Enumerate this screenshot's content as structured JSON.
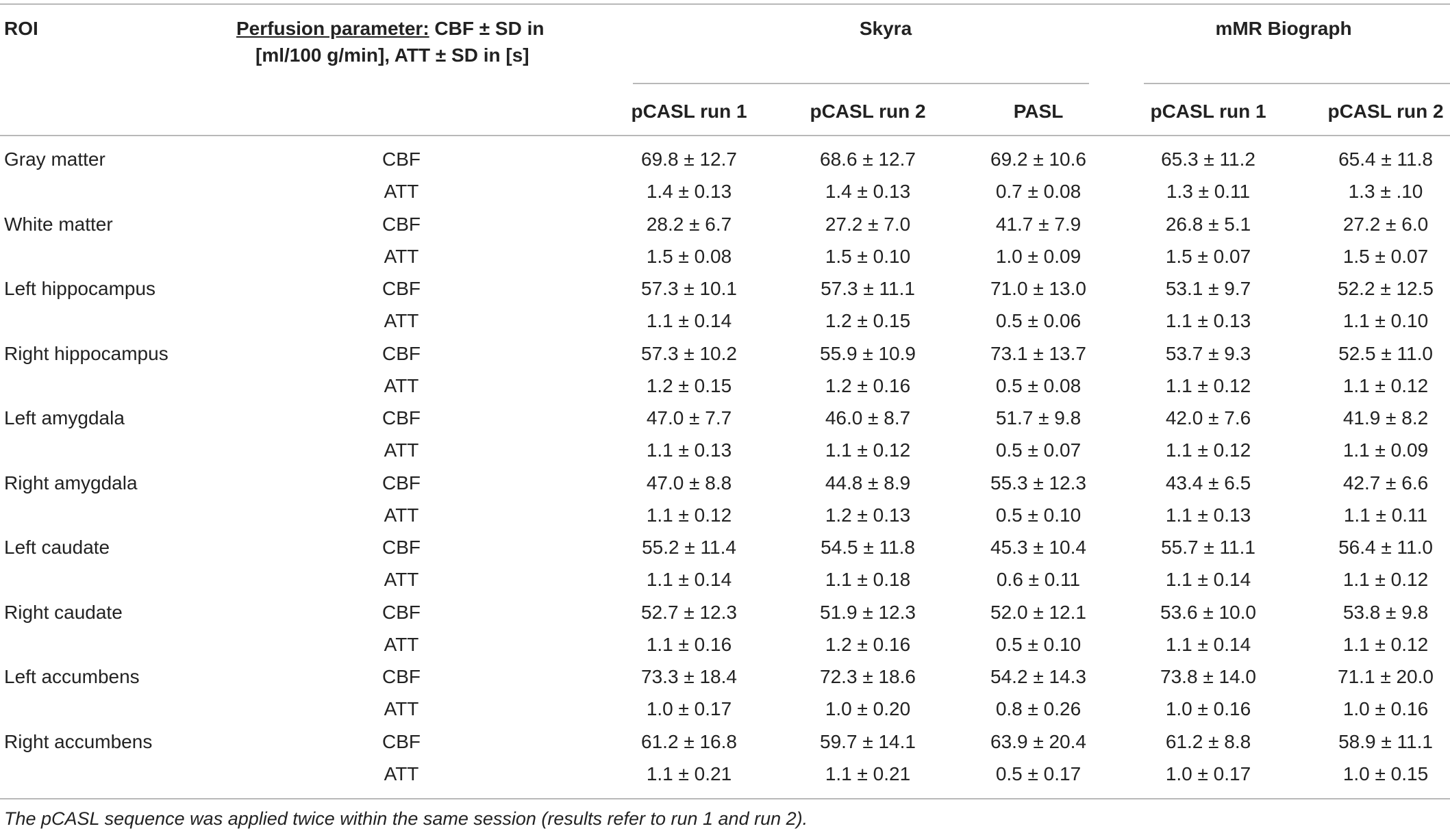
{
  "header": {
    "roi_label": "ROI",
    "param_label_underlined": "Perfusion parameter:",
    "param_label_rest": " CBF ± SD in",
    "param_label_line2": "[ml/100 g/min], ATT ± SD in [s]",
    "groups": [
      {
        "name": "Skyra",
        "columns": [
          "pCASL run 1",
          "pCASL run 2",
          "PASL"
        ]
      },
      {
        "name": "mMR Biograph",
        "columns": [
          "pCASL run 1",
          "pCASL run 2"
        ]
      }
    ]
  },
  "rows": [
    {
      "roi": "Gray matter",
      "cbf": [
        "69.8 ± 12.7",
        "68.6 ± 12.7",
        "69.2 ± 10.6",
        "65.3 ± 11.2",
        "65.4 ± 11.8"
      ],
      "att": [
        "1.4 ± 0.13",
        "1.4 ± 0.13",
        "0.7 ± 0.08",
        "1.3 ± 0.11",
        "1.3 ± .10"
      ]
    },
    {
      "roi": "White matter",
      "cbf": [
        "28.2 ± 6.7",
        "27.2 ± 7.0",
        "41.7 ± 7.9",
        "26.8 ± 5.1",
        "27.2 ± 6.0"
      ],
      "att": [
        "1.5 ± 0.08",
        "1.5 ± 0.10",
        "1.0 ± 0.09",
        "1.5 ± 0.07",
        "1.5 ± 0.07"
      ]
    },
    {
      "roi": "Left hippocampus",
      "cbf": [
        "57.3 ± 10.1",
        "57.3 ± 11.1",
        "71.0 ± 13.0",
        "53.1 ± 9.7",
        "52.2 ± 12.5"
      ],
      "att": [
        "1.1 ± 0.14",
        "1.2 ± 0.15",
        "0.5 ± 0.06",
        "1.1 ± 0.13",
        "1.1 ± 0.10"
      ]
    },
    {
      "roi": "Right hippocampus",
      "cbf": [
        "57.3 ± 10.2",
        "55.9 ± 10.9",
        "73.1 ± 13.7",
        "53.7 ± 9.3",
        "52.5 ± 11.0"
      ],
      "att": [
        "1.2 ± 0.15",
        "1.2 ± 0.16",
        "0.5 ± 0.08",
        "1.1 ± 0.12",
        "1.1 ± 0.12"
      ]
    },
    {
      "roi": "Left amygdala",
      "cbf": [
        "47.0 ± 7.7",
        "46.0 ± 8.7",
        "51.7 ± 9.8",
        "42.0 ± 7.6",
        "41.9 ± 8.2"
      ],
      "att": [
        "1.1 ± 0.13",
        "1.1 ± 0.12",
        "0.5 ± 0.07",
        "1.1 ± 0.12",
        "1.1 ± 0.09"
      ]
    },
    {
      "roi": "Right amygdala",
      "cbf": [
        "47.0 ± 8.8",
        "44.8 ± 8.9",
        "55.3 ± 12.3",
        "43.4 ± 6.5",
        "42.7 ± 6.6"
      ],
      "att": [
        "1.1 ± 0.12",
        "1.2 ± 0.13",
        "0.5 ± 0.10",
        "1.1 ± 0.13",
        "1.1 ± 0.11"
      ]
    },
    {
      "roi": "Left caudate",
      "cbf": [
        "55.2 ± 11.4",
        "54.5 ± 11.8",
        "45.3 ± 10.4",
        "55.7 ± 11.1",
        "56.4 ± 11.0"
      ],
      "att": [
        "1.1 ± 0.14",
        "1.1 ± 0.18",
        "0.6 ± 0.11",
        "1.1 ± 0.14",
        "1.1 ± 0.12"
      ]
    },
    {
      "roi": "Right caudate",
      "cbf": [
        "52.7 ± 12.3",
        "51.9 ± 12.3",
        "52.0 ± 12.1",
        "53.6 ± 10.0",
        "53.8 ± 9.8"
      ],
      "att": [
        "1.1 ± 0.16",
        "1.2 ± 0.16",
        "0.5 ± 0.10",
        "1.1 ± 0.14",
        "1.1 ± 0.12"
      ]
    },
    {
      "roi": "Left accumbens",
      "cbf": [
        "73.3 ± 18.4",
        "72.3 ± 18.6",
        "54.2 ± 14.3",
        "73.8 ± 14.0",
        "71.1 ± 20.0"
      ],
      "att": [
        "1.0 ± 0.17",
        "1.0 ± 0.20",
        "0.8 ± 0.26",
        "1.0 ± 0.16",
        "1.0 ± 0.16"
      ]
    },
    {
      "roi": "Right accumbens",
      "cbf": [
        "61.2 ± 16.8",
        "59.7 ± 14.1",
        "63.9 ± 20.4",
        "61.2 ± 8.8",
        "58.9 ± 11.1"
      ],
      "att": [
        "1.1 ± 0.21",
        "1.1 ± 0.21",
        "0.5 ± 0.17",
        "1.0 ± 0.17",
        "1.0 ± 0.15"
      ]
    }
  ],
  "param_labels": {
    "cbf": "CBF",
    "att": "ATT"
  },
  "footnote": "The pCASL sequence was applied twice within the same session (results refer to run 1 and run 2)."
}
